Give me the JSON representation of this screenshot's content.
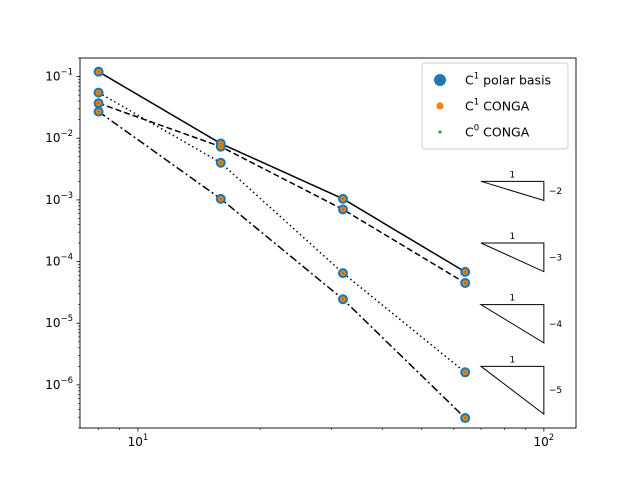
{
  "chart_data": {
    "type": "scatter",
    "xscale": "log",
    "yscale": "log",
    "xlim": [
      7.2,
      120
    ],
    "ylim": [
      2e-07,
      0.2
    ],
    "grid": false,
    "legend_position": "top-right",
    "x": [
      8,
      16,
      32,
      64
    ],
    "x_ticks": [
      {
        "value": 10,
        "mant": "10",
        "exp": "1"
      },
      {
        "value": 100,
        "mant": "10",
        "exp": "2"
      }
    ],
    "y_ticks": [
      {
        "value": 1e-06,
        "mant": "10",
        "exp": "−6"
      },
      {
        "value": 1e-05,
        "mant": "10",
        "exp": "−5"
      },
      {
        "value": 0.0001,
        "mant": "10",
        "exp": "−4"
      },
      {
        "value": 0.001,
        "mant": "10",
        "exp": "−3"
      },
      {
        "value": 0.01,
        "mant": "10",
        "exp": "−2"
      },
      {
        "value": 0.1,
        "mant": "10",
        "exp": "−1"
      }
    ],
    "series": [
      {
        "name": "C¹ polar basis",
        "legend_base": "C",
        "legend_sup": "1",
        "legend_rest": " polar basis",
        "color": "#1f77b4",
        "marker_size": 7,
        "marker": "circle",
        "groups": [
          [
            0.12,
            0.0082,
            0.00104,
            6.8e-05
          ],
          [
            0.055,
            0.0073,
            0.0007,
            4.5e-05
          ],
          [
            0.037,
            0.004,
            6.5e-05,
            1.6e-06
          ],
          [
            0.027,
            0.00104,
            2.45e-05,
            2.9e-07
          ]
        ]
      },
      {
        "name": "C¹ CONGA",
        "legend_base": "C",
        "legend_sup": "1",
        "legend_rest": " CONGA",
        "color": "#ff7f0e",
        "marker_size": 4,
        "marker": "circle",
        "groups": [
          [
            0.12,
            0.0082,
            0.00104,
            6.8e-05
          ],
          [
            0.055,
            0.0073,
            0.0007,
            4.5e-05
          ],
          [
            0.037,
            0.004,
            6.5e-05,
            1.6e-06
          ],
          [
            0.027,
            0.00104,
            2.45e-05,
            2.9e-07
          ]
        ]
      },
      {
        "name": "C⁰ CONGA",
        "legend_base": "C",
        "legend_sup": "0",
        "legend_rest": " CONGA",
        "color": "#2ca02c",
        "marker_size": 1.5,
        "marker": "circle",
        "groups": [
          [
            0.12,
            0.0082,
            0.00104,
            6.8e-05
          ],
          [
            0.055,
            0.0073,
            0.0007,
            4.5e-05
          ],
          [
            0.037,
            0.004,
            6.5e-05,
            1.6e-06
          ],
          [
            0.027,
            0.00104,
            2.45e-05,
            2.9e-07
          ]
        ]
      }
    ],
    "reference_lines": [
      {
        "style": "solid",
        "color": "#000000",
        "x": [
          8,
          16,
          32,
          64
        ],
        "y": [
          0.12,
          0.0082,
          0.00104,
          6.8e-05
        ]
      },
      {
        "style": "dashed",
        "color": "#000000",
        "x": [
          8,
          16,
          32,
          64
        ],
        "y": [
          0.037,
          0.0073,
          0.0007,
          4.5e-05
        ]
      },
      {
        "style": "dotted",
        "color": "#000000",
        "x": [
          8,
          16,
          32,
          64
        ],
        "y": [
          0.055,
          0.004,
          6.5e-05,
          1.6e-06
        ]
      },
      {
        "style": "dashdot",
        "color": "#000000",
        "x": [
          8,
          16,
          32,
          64
        ],
        "y": [
          0.027,
          0.00104,
          2.45e-05,
          2.9e-07
        ]
      }
    ],
    "slope_triangles": [
      {
        "x0": 70,
        "x1": 100,
        "y0": 0.002,
        "slope": -2,
        "run_label": "1",
        "rise_label": "−2"
      },
      {
        "x0": 70,
        "x1": 100,
        "y0": 0.0002,
        "slope": -3,
        "run_label": "1",
        "rise_label": "−3"
      },
      {
        "x0": 70,
        "x1": 100,
        "y0": 2e-05,
        "slope": -4,
        "run_label": "1",
        "rise_label": "−4"
      },
      {
        "x0": 70,
        "x1": 100,
        "y0": 2e-06,
        "slope": -5,
        "run_label": "1",
        "rise_label": "−5"
      }
    ]
  }
}
